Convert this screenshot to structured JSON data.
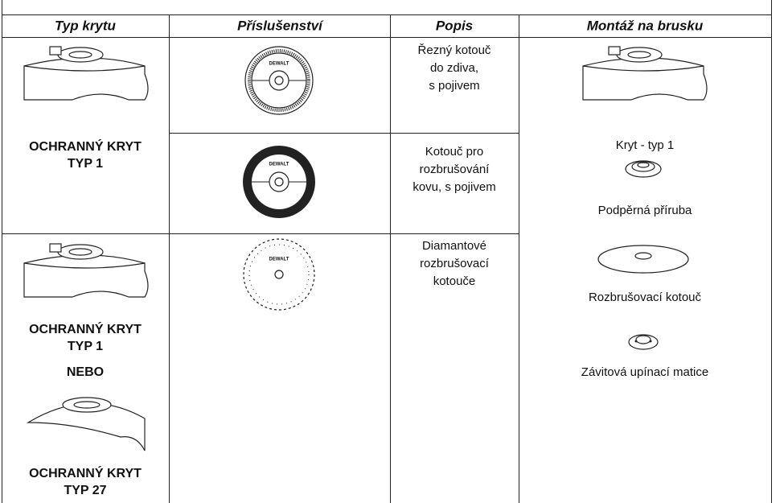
{
  "table": {
    "headers": [
      "Typ krytu",
      "Příslušenství",
      "Popis",
      "Montáž na brusku"
    ],
    "guard_1": [
      "OCHRANNÝ KRYT",
      "TYP 1"
    ],
    "guard_2": [
      "OCHRANNÝ KRYT",
      "TYP 1",
      "NEBO",
      "OCHRANNÝ KRYT",
      "TYP 27"
    ],
    "disc_logo": "DEWALT",
    "descriptions": [
      [
        "Řezný kotouč",
        "do zdiva,",
        "s pojivem"
      ],
      [
        "Kotouč pro",
        "rozbrušování",
        "kovu, s pojivem"
      ],
      [
        "Diamantové",
        "rozbrušovací",
        "kotouče"
      ]
    ],
    "assembly": [
      "Kryt - typ 1",
      "Podpěrná příruba",
      "Rozbrušovací kotouč",
      "Závitová upínací matice"
    ]
  }
}
